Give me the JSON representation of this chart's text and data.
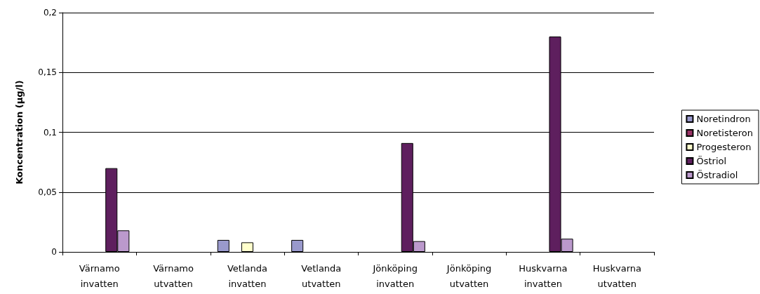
{
  "chart_data": {
    "type": "bar",
    "ylabel": "Koncentration (µg/l)",
    "categories": [
      "Värnamo\ninvatten",
      "Värnamo\nutvatten",
      "Vetlanda\ninvatten",
      "Vetlanda\nutvatten",
      "Jönköping\ninvatten",
      "Jönköping\nutvatten",
      "Huskvarna\ninvatten",
      "Huskvarna\nutvatten"
    ],
    "series": [
      {
        "name": "Noretindron",
        "color": "#9999cc",
        "values": [
          null,
          null,
          0.01,
          0.01,
          null,
          null,
          null,
          null
        ]
      },
      {
        "name": "Noretisteron",
        "color": "#993366",
        "values": [
          null,
          null,
          null,
          null,
          null,
          null,
          null,
          null
        ]
      },
      {
        "name": "Progesteron",
        "color": "#ffffcc",
        "values": [
          null,
          null,
          0.008,
          null,
          null,
          null,
          null,
          null
        ]
      },
      {
        "name": "Östriol",
        "color": "#5e1f5e",
        "values": [
          0.07,
          null,
          null,
          null,
          0.091,
          null,
          0.18,
          null
        ]
      },
      {
        "name": "Östradiol",
        "color": "#bb99cc",
        "values": [
          0.018,
          null,
          null,
          null,
          0.009,
          null,
          0.011,
          null
        ]
      }
    ],
    "ylim": [
      0,
      0.2
    ],
    "yticks": [
      {
        "value": 0,
        "label": "0"
      },
      {
        "value": 0.05,
        "label": "0,05"
      },
      {
        "value": 0.1,
        "label": "0,1"
      },
      {
        "value": 0.15,
        "label": "0,15"
      },
      {
        "value": 0.2,
        "label": "0,2"
      }
    ],
    "grid": "y",
    "legend": "right"
  }
}
